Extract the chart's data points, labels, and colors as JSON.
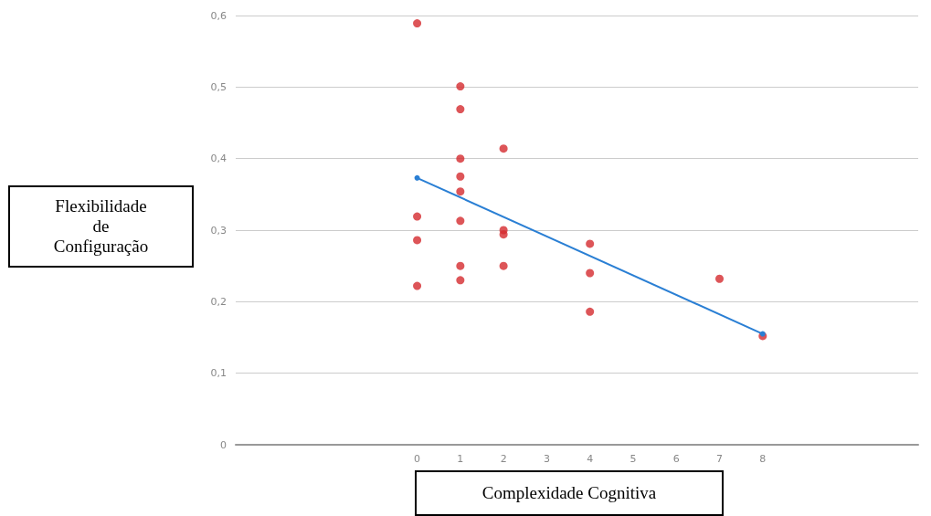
{
  "chart_data": {
    "type": "scatter",
    "xlabel": "Complexidade Cognitiva",
    "ylabel": "Flexibilidade\nde\nConfiguração",
    "xlim": [
      -4.2,
      11.6
    ],
    "xticks": [
      0,
      1,
      2,
      3,
      4,
      5,
      6,
      7,
      8
    ],
    "ylim": [
      0,
      0.6
    ],
    "yticks": [
      0,
      {
        "value": 0.1,
        "label": "0,1"
      },
      {
        "value": 0.2,
        "label": "0,2"
      },
      {
        "value": 0.3,
        "label": "0,3"
      },
      {
        "value": 0.4,
        "label": "0,4"
      },
      {
        "value": 0.5,
        "label": "0,5"
      },
      {
        "value": 0.6,
        "label": "0,6"
      }
    ],
    "grid": "y",
    "marker": "circle",
    "series": [
      {
        "color": "#d42a2e",
        "x": [
          0,
          0,
          0,
          0,
          1,
          1,
          1,
          1,
          1,
          1,
          1,
          1,
          2,
          2,
          2,
          2,
          4,
          4,
          4,
          7,
          8
        ],
        "values": [
          0.589,
          0.319,
          0.286,
          0.222,
          0.501,
          0.469,
          0.4,
          0.375,
          0.354,
          0.313,
          0.25,
          0.23,
          0.414,
          0.3,
          0.294,
          0.25,
          0.281,
          0.24,
          0.186,
          0.232,
          0.152
        ]
      },
      {
        "type": "line",
        "color": "#2a7fd4",
        "x": [
          0,
          8
        ],
        "values": [
          0.373,
          0.155
        ],
        "line_style": "solid"
      }
    ]
  }
}
